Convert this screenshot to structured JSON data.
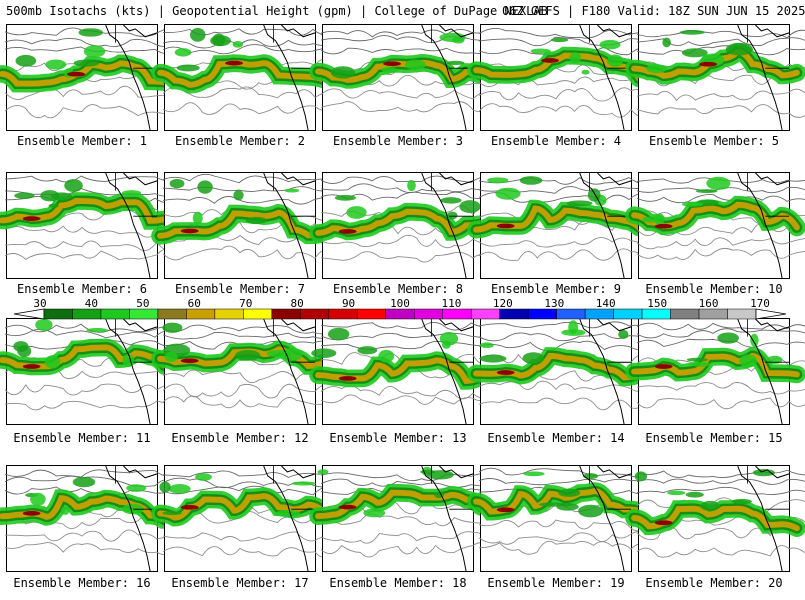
{
  "header": {
    "left": "500mb Isotachs (kts) | Geopotential Height (gpm) | College of DuPage NEXLAB",
    "right": "06Z GEFS | F180 Valid: 18Z SUN JUN 15 2025"
  },
  "panel_label_prefix": "Ensemble Member: ",
  "panels": [
    {
      "label": "Ensemble Member: 1"
    },
    {
      "label": "Ensemble Member: 2"
    },
    {
      "label": "Ensemble Member: 3"
    },
    {
      "label": "Ensemble Member: 4"
    },
    {
      "label": "Ensemble Member: 5"
    },
    {
      "label": "Ensemble Member: 6"
    },
    {
      "label": "Ensemble Member: 7"
    },
    {
      "label": "Ensemble Member: 8"
    },
    {
      "label": "Ensemble Member: 9"
    },
    {
      "label": "Ensemble Member: 10"
    },
    {
      "label": "Ensemble Member: 11"
    },
    {
      "label": "Ensemble Member: 12"
    },
    {
      "label": "Ensemble Member: 13"
    },
    {
      "label": "Ensemble Member: 14"
    },
    {
      "label": "Ensemble Member: 15"
    },
    {
      "label": "Ensemble Member: 16"
    },
    {
      "label": "Ensemble Member: 17"
    },
    {
      "label": "Ensemble Member: 18"
    },
    {
      "label": "Ensemble Member: 19"
    },
    {
      "label": "Ensemble Member: 20"
    }
  ],
  "colorbar": {
    "labels": [
      "30",
      "40",
      "50",
      "60",
      "70",
      "80",
      "90",
      "100",
      "110",
      "120",
      "130",
      "140",
      "150",
      "160",
      "170"
    ],
    "colors": [
      "#0f6e0f",
      "#16a016",
      "#1ec81e",
      "#35e835",
      "#8b7a1e",
      "#c8a000",
      "#e6d200",
      "#ffff00",
      "#8b0000",
      "#b00000",
      "#d40000",
      "#ff0000",
      "#c000c0",
      "#e000e0",
      "#ff00ff",
      "#ff40ff",
      "#0000b0",
      "#0000ff",
      "#2060ff",
      "#00a0ff",
      "#00d0ff",
      "#00ffff",
      "#808080",
      "#a0a0a0",
      "#c8c8c8"
    ]
  }
}
